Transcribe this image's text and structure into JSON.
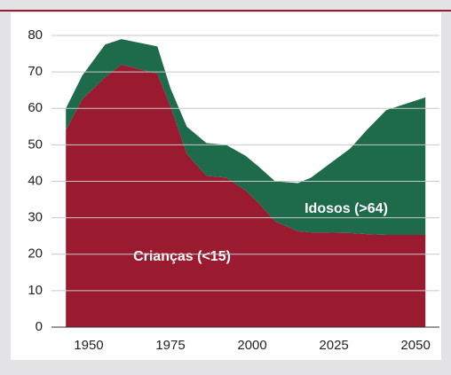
{
  "chart_data": {
    "type": "stacked_area",
    "x": [
      1943,
      1948,
      1955,
      1960,
      1971,
      1975,
      1980,
      1986,
      1992,
      1998,
      2002,
      2007,
      2014,
      2018,
      2030,
      2035,
      2041,
      2053
    ],
    "series": [
      {
        "name": "Crianças (<15)",
        "color": "#9a1a30",
        "values": [
          54,
          62.5,
          68.5,
          72,
          69.5,
          60.5,
          47.5,
          41.5,
          41,
          37.5,
          34,
          29,
          26.3,
          26,
          25.8,
          25.5,
          25.3,
          25.3
        ]
      },
      {
        "name": "Idosos (>64)",
        "color": "#1e6b4c",
        "values": [
          6,
          6.5,
          9,
          7,
          7.5,
          5,
          7.5,
          9,
          9,
          9.5,
          10,
          11,
          13.2,
          15,
          23.2,
          28.5,
          34.2,
          37.7
        ]
      }
    ],
    "xlim": [
      1938.6,
      2057.3
    ],
    "xticks": [
      1950,
      1975,
      2000,
      2025,
      2050
    ],
    "ylim": [
      0,
      80
    ],
    "yticks": [
      0,
      10,
      20,
      30,
      40,
      50,
      60,
      70,
      80
    ],
    "grid": true
  }
}
